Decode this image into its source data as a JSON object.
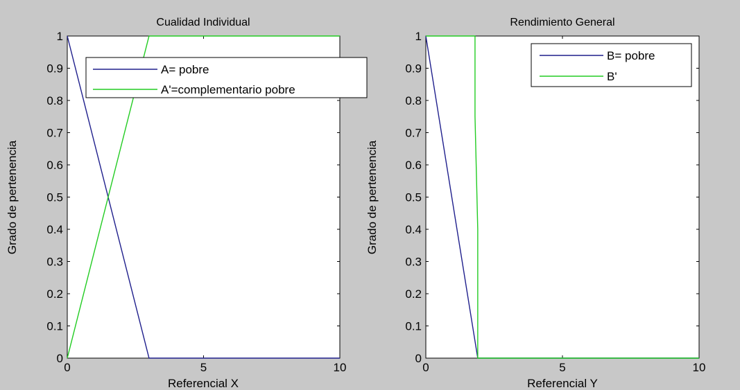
{
  "colors": {
    "figure_bg": "#c8c8c8",
    "axes_bg": "#ffffff",
    "series_blue": "#1f1f8c",
    "series_green": "#22cc22"
  },
  "chart_data": [
    {
      "type": "line",
      "title": "Cualidad Individual",
      "xlabel": "Referencial X",
      "ylabel": "Grado de pertenencia",
      "xlim": [
        0,
        10
      ],
      "ylim": [
        0,
        1
      ],
      "xticks": [
        0,
        5,
        10
      ],
      "xtick_labels": [
        "0",
        "5",
        "10"
      ],
      "yticks": [
        0,
        0.1,
        0.2,
        0.3,
        0.4,
        0.5,
        0.6,
        0.7,
        0.8,
        0.9,
        1
      ],
      "ytick_labels": [
        "0",
        "0.1",
        "0.2",
        "0.3",
        "0.4",
        "0.5",
        "0.6",
        "0.7",
        "0.8",
        "0.9",
        "1"
      ],
      "grid": false,
      "legend_position": "top-center",
      "series": [
        {
          "name": "A= pobre",
          "color": "#1f1f8c",
          "x": [
            0,
            3,
            10
          ],
          "y": [
            1,
            0,
            0
          ]
        },
        {
          "name": "A'=complementario pobre",
          "color": "#22cc22",
          "x": [
            0,
            3,
            10
          ],
          "y": [
            0,
            1,
            1
          ]
        }
      ]
    },
    {
      "type": "line",
      "title": "Rendimiento General",
      "xlabel": "Referencial Y",
      "ylabel": "Grado de pertenencia",
      "xlim": [
        0,
        10
      ],
      "ylim": [
        0,
        1
      ],
      "xticks": [
        0,
        5,
        10
      ],
      "xtick_labels": [
        "0",
        "5",
        "10"
      ],
      "yticks": [
        0,
        0.1,
        0.2,
        0.3,
        0.4,
        0.5,
        0.6,
        0.7,
        0.8,
        0.9,
        1
      ],
      "ytick_labels": [
        "0",
        "0.1",
        "0.2",
        "0.3",
        "0.4",
        "0.5",
        "0.6",
        "0.7",
        "0.8",
        "0.9",
        "1"
      ],
      "grid": false,
      "legend_position": "top-right",
      "series": [
        {
          "name": "B= pobre",
          "color": "#1f1f8c",
          "x": [
            0,
            1.9,
            10
          ],
          "y": [
            1,
            0,
            0
          ]
        },
        {
          "name": "B'",
          "color": "#22cc22",
          "x": [
            0,
            1.8,
            1.8,
            1.9,
            1.9,
            10
          ],
          "y": [
            1,
            1,
            0.75,
            0.4,
            0,
            0
          ]
        }
      ]
    }
  ]
}
